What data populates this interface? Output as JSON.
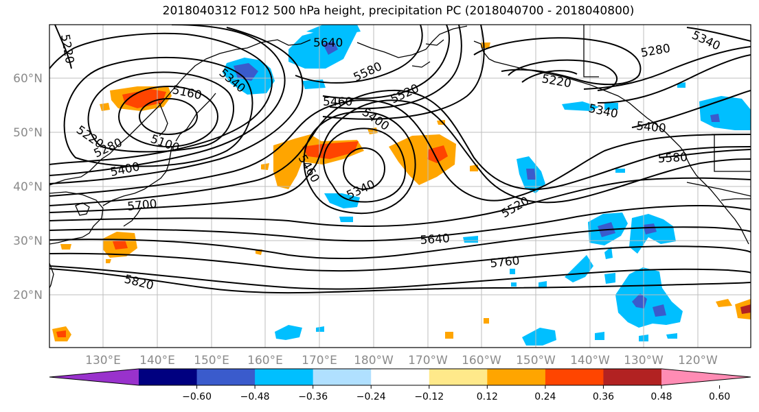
{
  "title": "2018040312 F012 500 hPa height, precipitation PC (2018040700 - 2018040800)",
  "map": {
    "lat_labels": [
      "60°N",
      "50°N",
      "40°N",
      "30°N",
      "20°N"
    ],
    "lon_labels": [
      "130°E",
      "140°E",
      "150°E",
      "160°E",
      "170°E",
      "180°W",
      "170°W",
      "160°W",
      "150°W",
      "140°W",
      "130°W",
      "120°W"
    ],
    "contour_labels": [
      "5220",
      "5160",
      "5100",
      "5220",
      "5280",
      "5400",
      "5700",
      "5820",
      "5340",
      "5640",
      "5580",
      "5520",
      "5460",
      "5400",
      "5460",
      "5340",
      "5280",
      "5220",
      "5340",
      "5400",
      "5580",
      "5520",
      "5640",
      "5760"
    ]
  },
  "colorbar": {
    "ticks": [
      "−0.60",
      "−0.48",
      "−0.36",
      "−0.24",
      "−0.12",
      "0.12",
      "0.24",
      "0.36",
      "0.48",
      "0.60"
    ],
    "colors": [
      "#9932cc",
      "#000080",
      "#3a5bcc",
      "#00bfff",
      "#b0e0ff",
      "#ffffff",
      "#ffe98a",
      "#ffa500",
      "#ff4500",
      "#b22222",
      "#ff8cb4"
    ]
  }
}
